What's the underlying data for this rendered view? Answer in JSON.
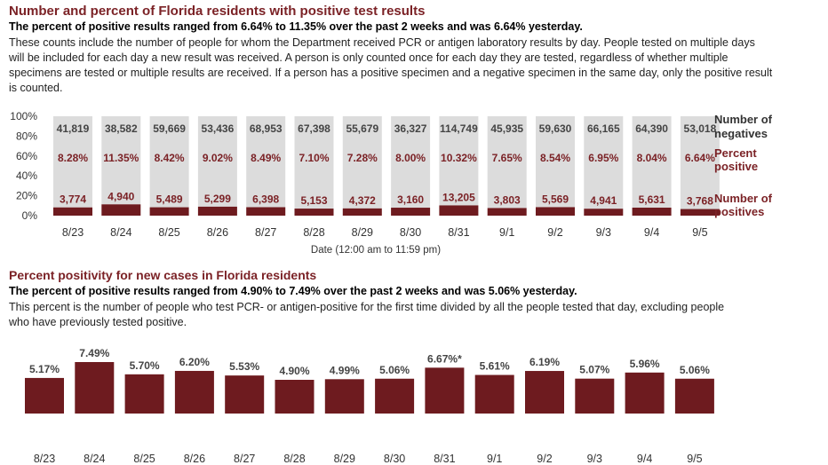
{
  "chart_data": [
    {
      "type": "bar",
      "title": "Number and percent of Florida residents with positive test results",
      "subtitle": "The percent of positive results ranged from 6.64% to 11.35% over the past 2 weeks and was 6.64% yesterday.",
      "description": "These counts include the number of people for whom the Department received PCR or antigen laboratory results by day. People tested on multiple days will be included for each day a new result was received. A person is only counted once for each day they are tested, regardless of whether multiple specimens are tested or multiple results are received. If a person has a positive specimen and a negative specimen in the same day, only the positive result is counted.",
      "categories": [
        "8/23",
        "8/24",
        "8/25",
        "8/26",
        "8/27",
        "8/28",
        "8/29",
        "8/30",
        "8/31",
        "9/1",
        "9/2",
        "9/3",
        "9/4",
        "9/5"
      ],
      "series": [
        {
          "name": "Number of negatives",
          "values": [
            "41,819",
            "38,582",
            "59,669",
            "53,436",
            "68,953",
            "67,398",
            "55,679",
            "36,327",
            "114,749",
            "45,935",
            "59,630",
            "66,165",
            "64,390",
            "53,018"
          ]
        },
        {
          "name": "Percent positive",
          "values": [
            "8.28%",
            "11.35%",
            "8.42%",
            "9.02%",
            "8.49%",
            "7.10%",
            "7.28%",
            "8.00%",
            "10.32%",
            "7.65%",
            "8.54%",
            "6.95%",
            "8.04%",
            "6.64%"
          ]
        },
        {
          "name": "Number of positives",
          "values": [
            "3,774",
            "4,940",
            "5,489",
            "5,299",
            "6,398",
            "5,153",
            "4,372",
            "3,160",
            "13,205",
            "3,803",
            "5,569",
            "4,941",
            "5,631",
            "3,768"
          ]
        }
      ],
      "percent_positive_values": [
        8.28,
        11.35,
        8.42,
        9.02,
        8.49,
        7.1,
        7.28,
        8.0,
        10.32,
        7.65,
        8.54,
        6.95,
        8.04,
        6.64
      ],
      "legend": {
        "negatives": [
          "Number of",
          "negatives"
        ],
        "percent": [
          "Percent",
          "positive"
        ],
        "positives": [
          "Number of",
          "positives"
        ]
      },
      "yticks": [
        "100%",
        "80%",
        "60%",
        "40%",
        "20%",
        "0%"
      ],
      "ylim": [
        0,
        100
      ],
      "xlabel": "Date (12:00 am to 11:59 pm)",
      "ylabel": "",
      "colors": {
        "positive": "#6e1b1f",
        "negative": "#dcdcdc",
        "label_red": "#7b2226"
      }
    },
    {
      "type": "bar",
      "title": "Percent positivity for new cases in Florida residents",
      "subtitle": "The percent of positive results ranged from 4.90% to 7.49% over the past 2 weeks and was 5.06% yesterday.",
      "description": "This percent is the number of people who test PCR- or antigen-positive for the first time divided by all the people tested that day, excluding people who have previously tested positive.",
      "categories": [
        "8/23",
        "8/24",
        "8/25",
        "8/26",
        "8/27",
        "8/28",
        "8/29",
        "8/30",
        "8/31",
        "9/1",
        "9/2",
        "9/3",
        "9/4",
        "9/5"
      ],
      "values": [
        5.17,
        7.49,
        5.7,
        6.2,
        5.53,
        4.9,
        4.99,
        5.06,
        6.67,
        5.61,
        6.19,
        5.07,
        5.96,
        5.06
      ],
      "labels": [
        "5.17%",
        "7.49%",
        "5.70%",
        "6.20%",
        "5.53%",
        "4.90%",
        "4.99%",
        "5.06%",
        "6.67%*",
        "5.61%",
        "6.19%",
        "5.07%",
        "5.96%",
        "5.06%"
      ],
      "xlabel": "",
      "ylabel": "",
      "colors": {
        "bar": "#6e1b1f"
      }
    }
  ]
}
